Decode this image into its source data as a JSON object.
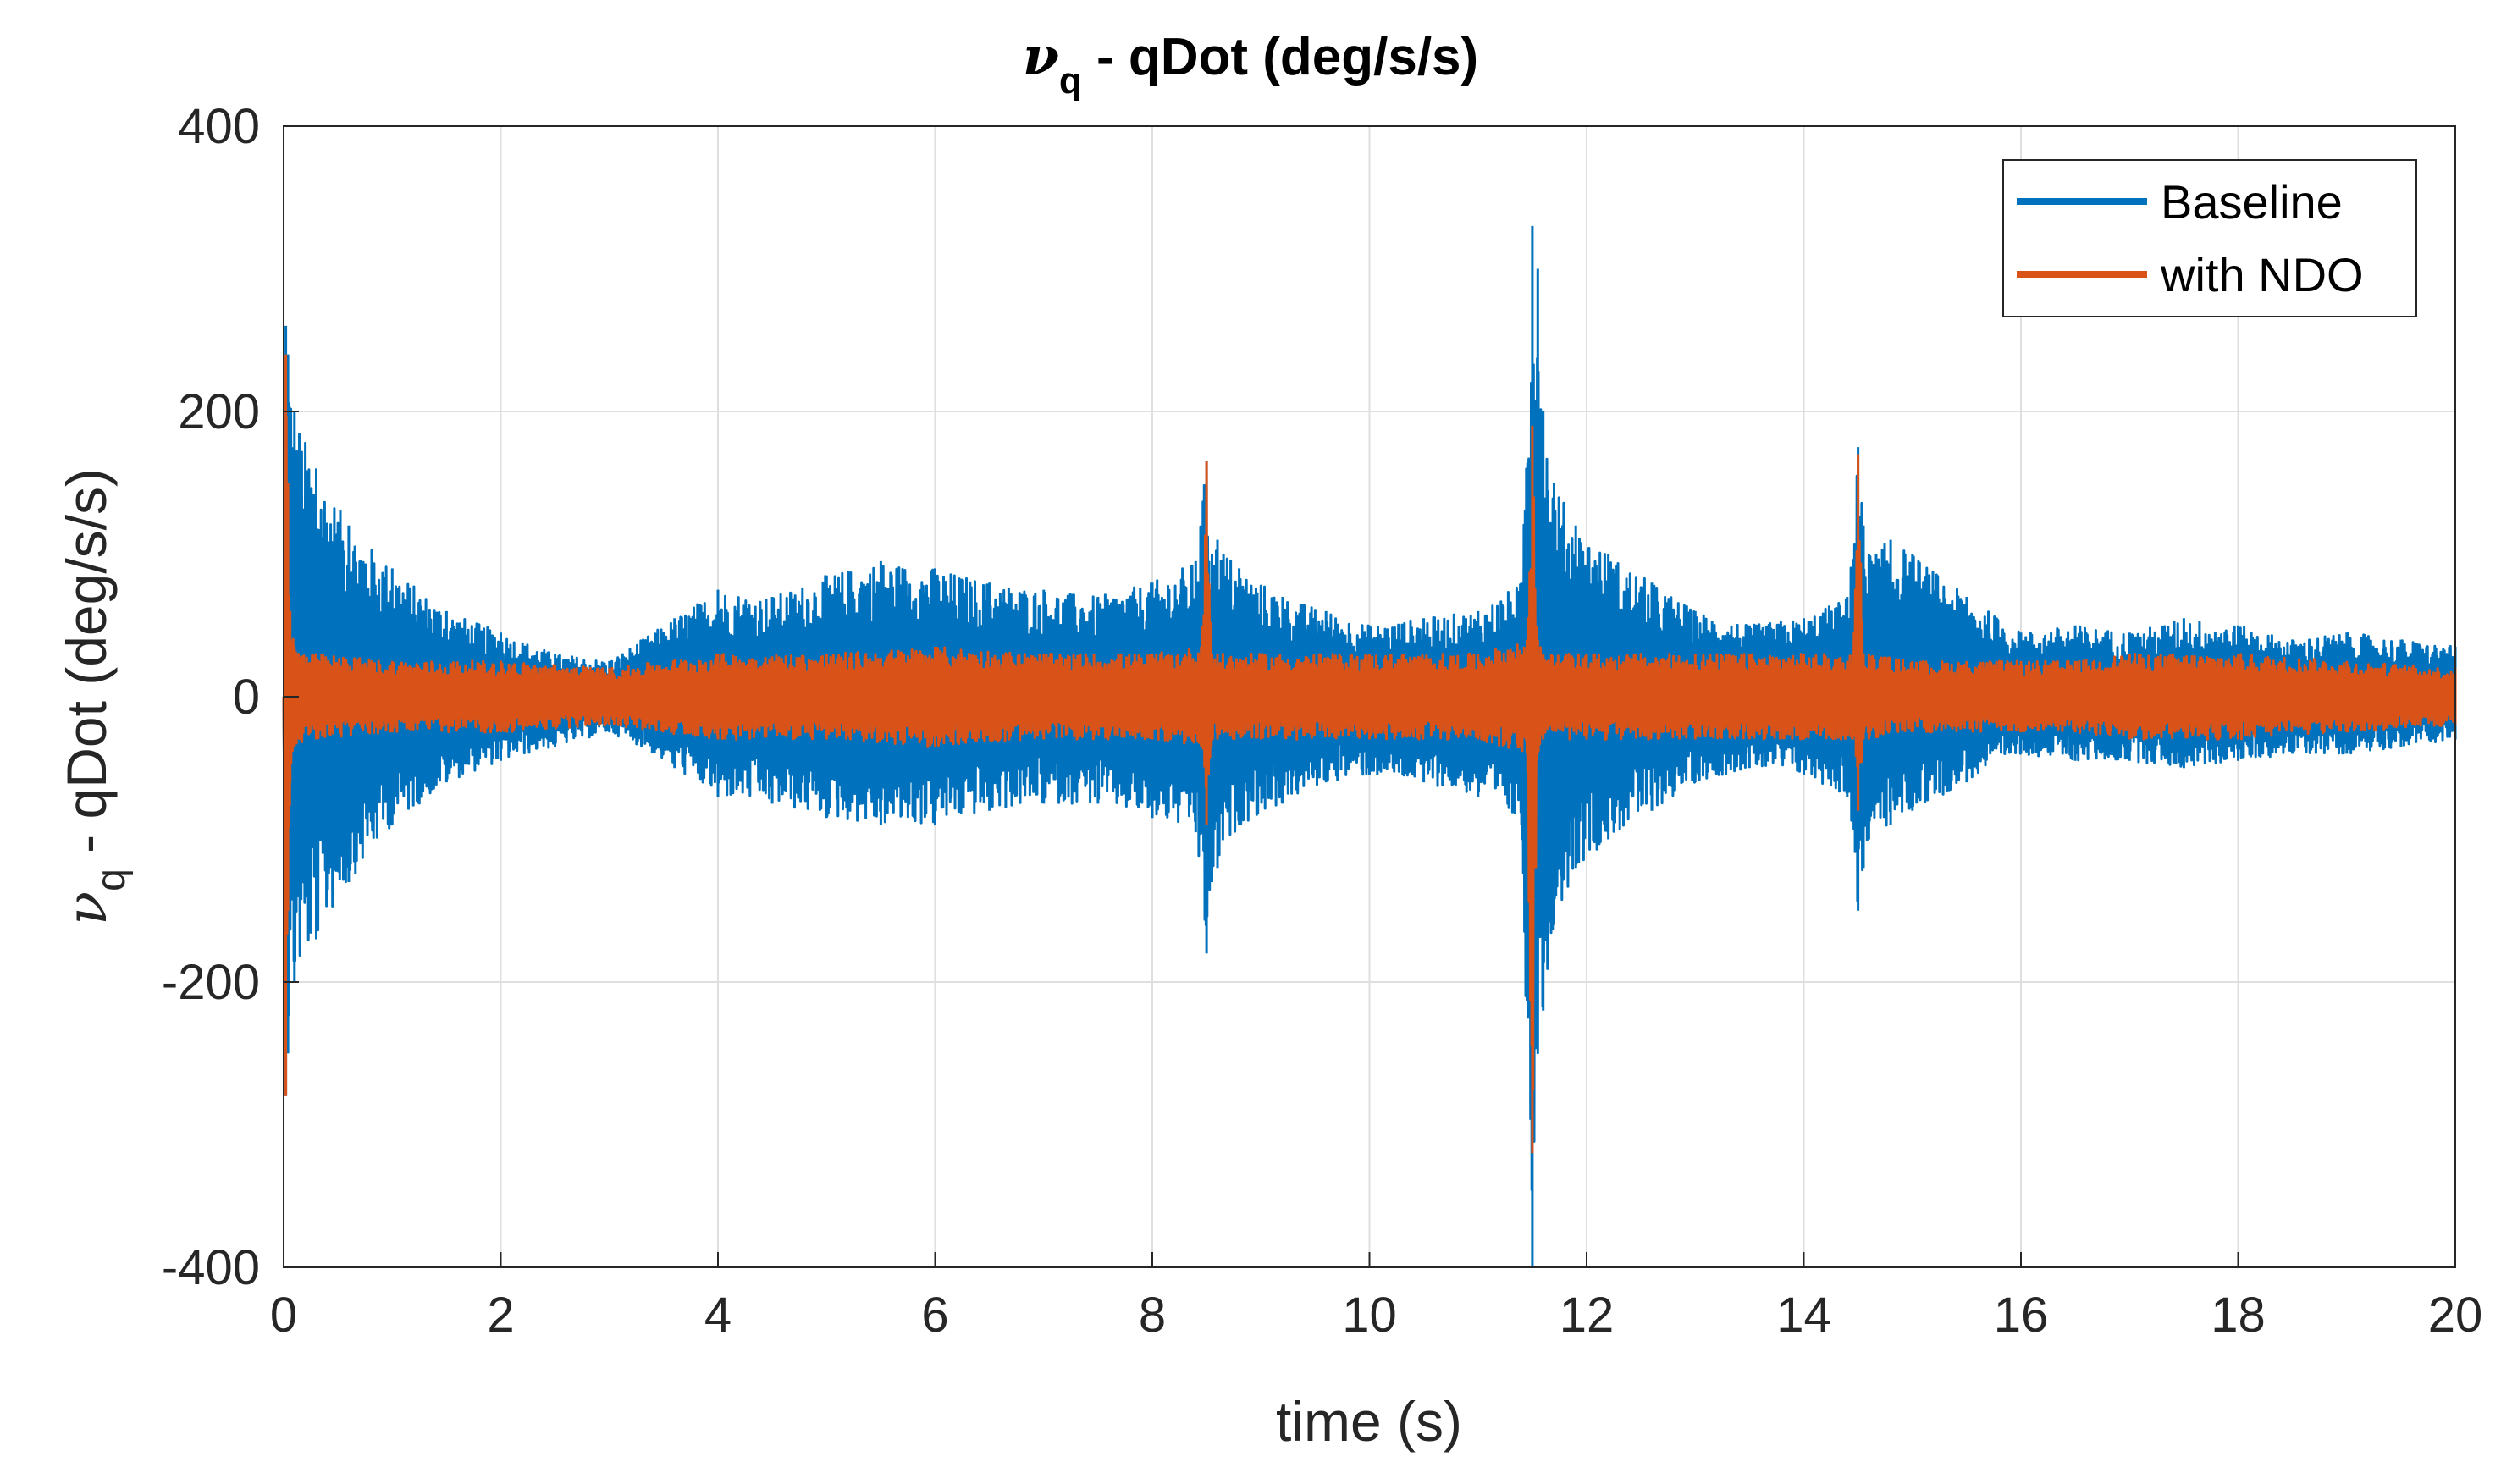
{
  "chart_data": {
    "type": "line",
    "title": {
      "symbol": "ν",
      "subscript": "q",
      "text": " - qDot (deg/s/s)"
    },
    "xlabel": "time (s)",
    "ylabel": {
      "symbol": "ν",
      "subscript": "q",
      "text": " - qDot (deg/s/s)"
    },
    "xlim": [
      0,
      20
    ],
    "ylim": [
      -400,
      400
    ],
    "xticks": [
      0,
      2,
      4,
      6,
      8,
      10,
      12,
      14,
      16,
      18,
      20
    ],
    "yticks": [
      -400,
      -200,
      0,
      200,
      400
    ],
    "xtick_labels": [
      "0",
      "2",
      "4",
      "6",
      "8",
      "10",
      "12",
      "14",
      "16",
      "18",
      "20"
    ],
    "ytick_labels": [
      "-400",
      "-200",
      "0",
      "200",
      "400"
    ],
    "grid": true,
    "legend_position": "top-right",
    "series": [
      {
        "name": "Baseline",
        "color": "#0072BD",
        "x": [
          0,
          0.02,
          0.04,
          0.1,
          0.3,
          0.6,
          1.0,
          1.5,
          2.0,
          2.5,
          3.0,
          3.3,
          3.6,
          4.0,
          4.5,
          5.0,
          5.5,
          6.0,
          6.5,
          7.0,
          7.5,
          8.0,
          8.4,
          8.5,
          8.55,
          8.6,
          8.8,
          9.2,
          9.6,
          10.0,
          10.5,
          11.0,
          11.4,
          11.5,
          11.55,
          11.6,
          11.7,
          11.9,
          12.2,
          12.6,
          13.0,
          13.5,
          14.0,
          14.4,
          14.5,
          14.55,
          14.6,
          14.8,
          15.0,
          15.5,
          16.0,
          16.5,
          17.0,
          17.5,
          18.0,
          18.5,
          19.0,
          19.5,
          20.0
        ],
        "upper": [
          0,
          260,
          240,
          200,
          160,
          120,
          90,
          60,
          45,
          30,
          25,
          40,
          55,
          75,
          70,
          85,
          95,
          90,
          80,
          75,
          70,
          80,
          95,
          165,
          100,
          110,
          90,
          70,
          60,
          50,
          55,
          60,
          80,
          330,
          300,
          200,
          150,
          120,
          100,
          80,
          60,
          50,
          55,
          70,
          175,
          120,
          100,
          110,
          100,
          70,
          45,
          50,
          45,
          55,
          50,
          40,
          45,
          40,
          35
        ],
        "lower": [
          0,
          -280,
          -250,
          -200,
          -170,
          -130,
          -90,
          -60,
          -45,
          -35,
          -25,
          -35,
          -50,
          -70,
          -75,
          -85,
          -90,
          -90,
          -80,
          -75,
          -75,
          -85,
          -95,
          -180,
          -130,
          -120,
          -90,
          -75,
          -60,
          -55,
          -60,
          -70,
          -90,
          -400,
          -250,
          -220,
          -160,
          -120,
          -100,
          -80,
          -60,
          -50,
          -55,
          -70,
          -150,
          -120,
          -100,
          -90,
          -80,
          -60,
          -40,
          -45,
          -45,
          -50,
          -45,
          -40,
          -40,
          -35,
          -30
        ]
      },
      {
        "name": "with NDO",
        "color": "#D95319",
        "x": [
          0,
          0.02,
          0.04,
          0.06,
          0.1,
          0.3,
          1.0,
          2.0,
          3.0,
          4.0,
          5.0,
          6.0,
          7.0,
          8.0,
          8.45,
          8.5,
          8.55,
          8.6,
          9.0,
          10.0,
          11.0,
          11.45,
          11.5,
          11.55,
          11.6,
          12.0,
          13.0,
          13.5,
          14.0,
          14.45,
          14.5,
          14.55,
          14.6,
          15.0,
          16.0,
          16.5,
          17.0,
          18.0,
          19.0,
          20.0
        ],
        "upper": [
          0,
          240,
          150,
          60,
          35,
          30,
          25,
          25,
          20,
          30,
          30,
          35,
          30,
          30,
          35,
          165,
          30,
          30,
          30,
          30,
          30,
          40,
          190,
          40,
          30,
          30,
          30,
          30,
          30,
          30,
          170,
          30,
          30,
          25,
          25,
          25,
          30,
          30,
          25,
          20
        ],
        "lower": [
          0,
          -280,
          -150,
          -60,
          -35,
          -30,
          -25,
          -25,
          -20,
          -30,
          -30,
          -35,
          -30,
          -30,
          -35,
          -90,
          -30,
          -30,
          -30,
          -30,
          -30,
          -40,
          -320,
          -40,
          -30,
          -30,
          -30,
          -30,
          -30,
          -30,
          -80,
          -30,
          -30,
          -25,
          -25,
          -25,
          -30,
          -30,
          -25,
          -20
        ]
      }
    ]
  }
}
